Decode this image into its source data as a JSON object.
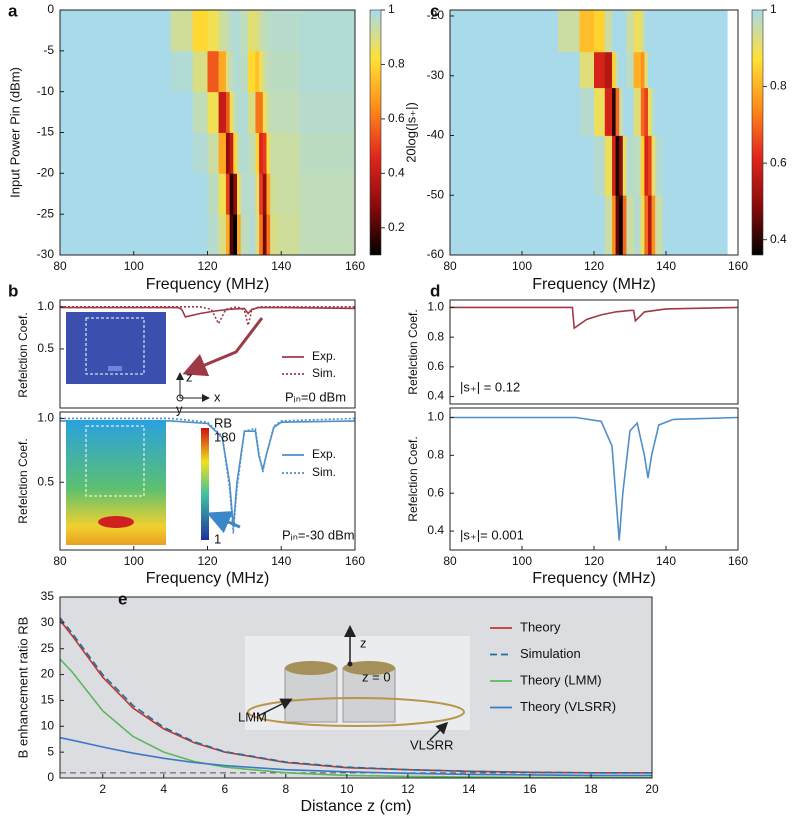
{
  "chart_data": [
    {
      "type": "heatmap",
      "label": "a",
      "xlabel": "Frequency (MHz)",
      "ylabel": "Input Power Pin (dBm)",
      "x_edges": [
        80,
        110,
        116,
        120,
        123,
        125,
        126,
        127,
        128,
        129,
        131,
        133,
        134,
        135,
        136,
        137,
        139,
        145,
        160
      ],
      "y_edges": [
        -30,
        -25,
        -20,
        -15,
        -10,
        -5,
        0
      ],
      "z": [
        [
          1,
          1,
          1,
          0.97,
          0.9,
          0.7,
          0.2,
          0.1,
          0.7,
          0.95,
          0.98,
          0.9,
          0.6,
          0.25,
          0.6,
          0.9,
          0.92,
          0.95
        ],
        [
          1,
          1,
          1,
          0.96,
          0.85,
          0.5,
          0.15,
          0.3,
          0.85,
          0.97,
          0.97,
          0.88,
          0.5,
          0.3,
          0.7,
          0.92,
          0.93,
          0.95
        ],
        [
          1,
          1,
          0.98,
          0.93,
          0.7,
          0.3,
          0.4,
          0.8,
          0.95,
          0.98,
          0.95,
          0.8,
          0.45,
          0.5,
          0.85,
          0.93,
          0.93,
          0.96
        ],
        [
          1,
          1,
          0.95,
          0.85,
          0.4,
          0.55,
          0.85,
          0.95,
          0.98,
          0.98,
          0.9,
          0.6,
          0.6,
          0.85,
          0.93,
          0.95,
          0.95,
          0.97
        ],
        [
          1,
          0.98,
          0.9,
          0.55,
          0.7,
          0.9,
          0.95,
          0.98,
          0.98,
          0.96,
          0.8,
          0.75,
          0.85,
          0.93,
          0.95,
          0.96,
          0.96,
          0.98
        ],
        [
          1,
          0.92,
          0.8,
          0.85,
          0.92,
          0.95,
          0.97,
          0.98,
          0.98,
          0.95,
          0.88,
          0.9,
          0.93,
          0.95,
          0.96,
          0.97,
          0.97,
          0.98
        ]
      ],
      "xlim": [
        80,
        160
      ],
      "xticks": [
        80,
        100,
        120,
        140,
        160
      ],
      "ylim": [
        -30,
        0
      ],
      "yticks": [
        -30,
        -25,
        -20,
        -15,
        -10,
        -5,
        0
      ],
      "colormap": [
        "#000000",
        "#8b0a0a",
        "#e0261c",
        "#ff8c1a",
        "#ffe135",
        "#a9daea"
      ],
      "clim": [
        0.1,
        1
      ],
      "cticks": [
        0.2,
        0.4,
        0.6,
        0.8,
        1
      ]
    },
    {
      "type": "heatmap",
      "label": "c",
      "xlabel": "Frequency (MHz)",
      "ylabel": "20log(|s₊|)",
      "x_edges": [
        80,
        110,
        116,
        120,
        123,
        125,
        126,
        127,
        128,
        129,
        131,
        133,
        134,
        135,
        136,
        137,
        139,
        145,
        157
      ],
      "y_edges": [
        -60,
        -50,
        -40,
        -32,
        -26,
        -19
      ],
      "z": [
        [
          1,
          1,
          1,
          1,
          0.95,
          0.75,
          0.45,
          0.37,
          0.7,
          0.95,
          0.98,
          0.9,
          0.7,
          0.55,
          0.75,
          0.95,
          1,
          1
        ],
        [
          1,
          1,
          1,
          0.98,
          0.9,
          0.6,
          0.38,
          0.5,
          0.9,
          0.98,
          0.97,
          0.85,
          0.6,
          0.65,
          0.9,
          0.98,
          1,
          1
        ],
        [
          1,
          1,
          0.98,
          0.9,
          0.6,
          0.4,
          0.7,
          0.95,
          1,
          1,
          0.92,
          0.7,
          0.65,
          0.9,
          0.98,
          1,
          1,
          1
        ],
        [
          1,
          1,
          0.92,
          0.6,
          0.55,
          0.85,
          0.97,
          1,
          1,
          0.97,
          0.8,
          0.75,
          0.92,
          1,
          1,
          1,
          1,
          1
        ],
        [
          1,
          0.95,
          0.82,
          0.85,
          0.95,
          1,
          1,
          1,
          1,
          0.95,
          0.9,
          0.93,
          1,
          1,
          1,
          1,
          1,
          1
        ]
      ],
      "xlim": [
        80,
        160
      ],
      "xticks": [
        80,
        100,
        120,
        140,
        160
      ],
      "ylim": [
        -60,
        -19
      ],
      "yticks": [
        -60,
        -50,
        -40,
        -30,
        -20
      ],
      "colormap": [
        "#000000",
        "#8b0a0a",
        "#e0261c",
        "#ff8c1a",
        "#ffe135",
        "#a9daea"
      ],
      "clim": [
        0.36,
        1
      ],
      "cticks": [
        0.4,
        0.6,
        0.8,
        1
      ]
    },
    {
      "type": "line",
      "label": "b",
      "ylabel": "Refelction Coef.",
      "xlim": [
        80,
        160
      ],
      "ylim": [
        -0.2,
        1.08
      ],
      "yticks": [
        0.5,
        {
          "value": 1,
          "label": "1.0"
        }
      ],
      "legend": "right",
      "series": [
        {
          "name": "Exp.",
          "color": "#9e3a46",
          "style": "solid",
          "x": [
            80,
            100,
            112,
            113,
            114,
            118,
            122,
            126,
            130,
            131,
            132,
            134,
            140,
            160
          ],
          "values": [
            0.99,
            0.99,
            0.99,
            0.97,
            0.88,
            0.92,
            0.95,
            0.97,
            0.98,
            0.92,
            0.97,
            0.99,
            0.99,
            0.98
          ]
        },
        {
          "name": "Sim.",
          "color": "#9e3a46",
          "style": "dotted",
          "x": [
            80,
            118,
            121,
            123,
            125,
            128,
            130,
            131,
            132,
            134,
            160
          ],
          "values": [
            1,
            1,
            0.97,
            0.8,
            0.97,
            1,
            0.96,
            0.78,
            0.96,
            1,
            1
          ]
        }
      ],
      "annotations": [
        "Pᵢₙ=0 dBm"
      ],
      "inset_labels": [
        "z",
        "y",
        "x"
      ]
    },
    {
      "type": "line",
      "ylabel": "Refelction Coef.",
      "xlabel": "Frequency (MHz)",
      "xlim": [
        80,
        160
      ],
      "xticks": [
        80,
        100,
        120,
        140,
        160
      ],
      "ylim": [
        -0.03,
        1.05
      ],
      "yticks": [
        0.5,
        {
          "value": 1,
          "label": "1.0"
        }
      ],
      "legend": "right",
      "series": [
        {
          "name": "Exp.",
          "color": "#4f8fc8",
          "style": "solid",
          "x": [
            80,
            110,
            120,
            124,
            126,
            127,
            128,
            130,
            133,
            134,
            135,
            136,
            138,
            140,
            160
          ],
          "values": [
            0.98,
            0.98,
            0.96,
            0.85,
            0.5,
            0.15,
            0.5,
            0.9,
            0.9,
            0.7,
            0.6,
            0.72,
            0.93,
            0.97,
            0.98
          ]
        },
        {
          "name": "Sim.",
          "color": "#4f8fc8",
          "style": "dotted",
          "x": [
            80,
            110,
            120,
            124,
            126,
            127,
            128,
            130,
            133,
            134,
            135,
            136,
            138,
            140,
            160
          ],
          "values": [
            1,
            1,
            0.97,
            0.86,
            0.45,
            0.1,
            0.45,
            0.9,
            0.92,
            0.72,
            0.58,
            0.72,
            0.94,
            0.98,
            1
          ]
        }
      ],
      "annotations": [
        "Pᵢₙ=-30 dBm"
      ],
      "inset_labels": [
        "RB",
        "180",
        "1"
      ]
    },
    {
      "type": "line",
      "label": "d",
      "ylabel": "Refelction Coef.",
      "xlim": [
        80,
        160
      ],
      "ylim": [
        0.35,
        1.05
      ],
      "yticks": [
        0.4,
        0.6,
        0.8,
        {
          "value": 1,
          "label": "1.0"
        }
      ],
      "series": [
        {
          "color": "#9e3a46",
          "style": "solid",
          "x": [
            80,
            110,
            114,
            114.5,
            118,
            122,
            126,
            130,
            131,
            131.5,
            134,
            140,
            160
          ],
          "values": [
            1,
            1,
            1,
            0.86,
            0.92,
            0.95,
            0.97,
            0.98,
            0.98,
            0.91,
            0.97,
            0.99,
            1
          ]
        }
      ],
      "annotations": [
        "|s₊| = 0.12"
      ]
    },
    {
      "type": "line",
      "ylabel": "Refelction Coef.",
      "xlabel": "Frequency (MHz)",
      "xlim": [
        80,
        160
      ],
      "xticks": [
        80,
        100,
        120,
        140,
        160
      ],
      "ylim": [
        0.3,
        1.05
      ],
      "yticks": [
        0.4,
        0.6,
        0.8,
        {
          "value": 1,
          "label": "1.0"
        }
      ],
      "series": [
        {
          "color": "#4f8fc8",
          "style": "solid",
          "x": [
            80,
            115,
            122,
            125,
            126,
            127,
            128,
            130,
            132,
            134,
            135,
            136,
            138,
            142,
            160
          ],
          "values": [
            1,
            1,
            0.98,
            0.85,
            0.6,
            0.35,
            0.6,
            0.93,
            0.97,
            0.8,
            0.68,
            0.8,
            0.96,
            0.99,
            1
          ]
        }
      ],
      "annotations": [
        "|s₊|= 0.001"
      ]
    },
    {
      "type": "line",
      "label": "e",
      "xlabel": "Distance z (cm)",
      "ylabel": "B enhancement ratio RB",
      "xlim": [
        0.6,
        20
      ],
      "xticks": [
        2,
        4,
        6,
        8,
        10,
        12,
        14,
        16,
        18,
        20
      ],
      "ylim": [
        0,
        35
      ],
      "yticks": [
        0,
        5,
        10,
        15,
        20,
        25,
        30,
        35
      ],
      "background": "#dcdde0",
      "reference_line": 1,
      "legend": "right",
      "series": [
        {
          "name": "Theory",
          "color": "#c0392b",
          "style": "solid",
          "x": [
            0.6,
            1,
            2,
            3,
            4,
            5,
            6,
            8,
            10,
            12,
            14,
            16,
            18,
            20
          ],
          "values": [
            30.5,
            27.5,
            19.5,
            13.5,
            9.5,
            6.8,
            5,
            3,
            2,
            1.6,
            1.3,
            1.1,
            1,
            1
          ]
        },
        {
          "name": "Simulation",
          "color": "#1f6fa5",
          "style": "dashed",
          "x": [
            0.6,
            1,
            2,
            3,
            4,
            5,
            6,
            8,
            10,
            12,
            14,
            16,
            18,
            20
          ],
          "values": [
            31,
            28,
            20,
            14,
            9.8,
            7,
            5.1,
            3.1,
            2.1,
            1.6,
            1.3,
            1.1,
            1,
            1
          ]
        },
        {
          "name": "Theory (LMM)",
          "color": "#5cb85c",
          "style": "solid",
          "x": [
            0.6,
            1,
            2,
            3,
            4,
            5,
            6,
            8,
            10,
            12,
            14,
            16,
            18,
            20
          ],
          "values": [
            23,
            20.5,
            13,
            8,
            5,
            3.2,
            2.1,
            1,
            0.5,
            0.3,
            0.2,
            0.1,
            0.1,
            0.1
          ]
        },
        {
          "name": "Theory (VLSRR)",
          "color": "#3a78c8",
          "style": "solid",
          "x": [
            0.6,
            1,
            2,
            3,
            4,
            5,
            6,
            8,
            10,
            12,
            14,
            16,
            18,
            20
          ],
          "values": [
            7.8,
            7.3,
            6,
            4.8,
            3.8,
            3,
            2.4,
            1.6,
            1.2,
            0.9,
            0.7,
            0.6,
            0.5,
            0.5
          ]
        }
      ],
      "inset_labels": [
        "z",
        "z = 0",
        "LMM",
        "VLSRR"
      ]
    }
  ]
}
